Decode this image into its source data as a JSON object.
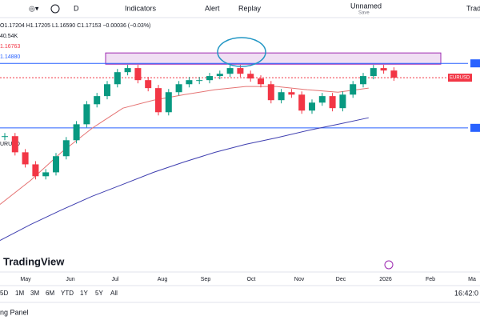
{
  "toolbar": {
    "interval": "D",
    "indicators": "Indicators",
    "alert": "Alert",
    "replay": "Replay",
    "layout_name": "Unnamed",
    "layout_status": "Save",
    "trade": "Trad"
  },
  "legend": {
    "symbol": "URUSD",
    "ohlc": "O1.17204 H1.17205 L1.16590 C1.17153 −0.00036 (−0.03%)",
    "volume": "40.54K",
    "ma_fast": "1.16763",
    "ma_slow": "1.14880"
  },
  "left_symbol": "URUSD",
  "price_tag": "EURUSD",
  "brand": "TradingView",
  "time_axis": [
    "May",
    "Jun",
    "Jul",
    "Aug",
    "Sep",
    "Oct",
    "Nov",
    "Dec",
    "2026",
    "Feb",
    "Ma"
  ],
  "ranges": [
    "5D",
    "1M",
    "3M",
    "6M",
    "YTD",
    "1Y",
    "5Y",
    "All"
  ],
  "clock": "16:42:0",
  "panel": "ng Panel",
  "chart_data": {
    "type": "candlestick",
    "ylim": [
      1.052,
      1.219
    ],
    "closes": [
      1.1354,
      1.1255,
      1.1181,
      1.1108,
      1.1132,
      1.1231,
      1.1329,
      1.1427,
      1.155,
      1.16,
      1.1673,
      1.1747,
      1.1772,
      1.1698,
      1.1649,
      1.1501,
      1.1624,
      1.1673,
      1.1698,
      1.1698,
      1.1723,
      1.1737,
      1.1772,
      1.1737,
      1.1708,
      1.1673,
      1.1575,
      1.1624,
      1.1609,
      1.1511,
      1.156,
      1.16,
      1.1526,
      1.1609,
      1.1673,
      1.1723,
      1.1772,
      1.1757,
      1.1713
    ],
    "ma_fast": [
      1.0935,
      1.1083,
      1.1255,
      1.1403,
      1.1526,
      1.1575,
      1.1609,
      1.1639,
      1.1659,
      1.1659,
      1.1639,
      1.1624,
      1.1649
    ],
    "ma_slow": [
      1.0714,
      1.0812,
      1.0901,
      1.0985,
      1.1058,
      1.1132,
      1.1196,
      1.1255,
      1.1304,
      1.1344,
      1.1388,
      1.1427,
      1.1467
    ],
    "resistance_zone": [
      1.1796,
      1.1865
    ],
    "levels": [
      1.1801,
      1.1405
    ],
    "last_price": 1.1713
  }
}
